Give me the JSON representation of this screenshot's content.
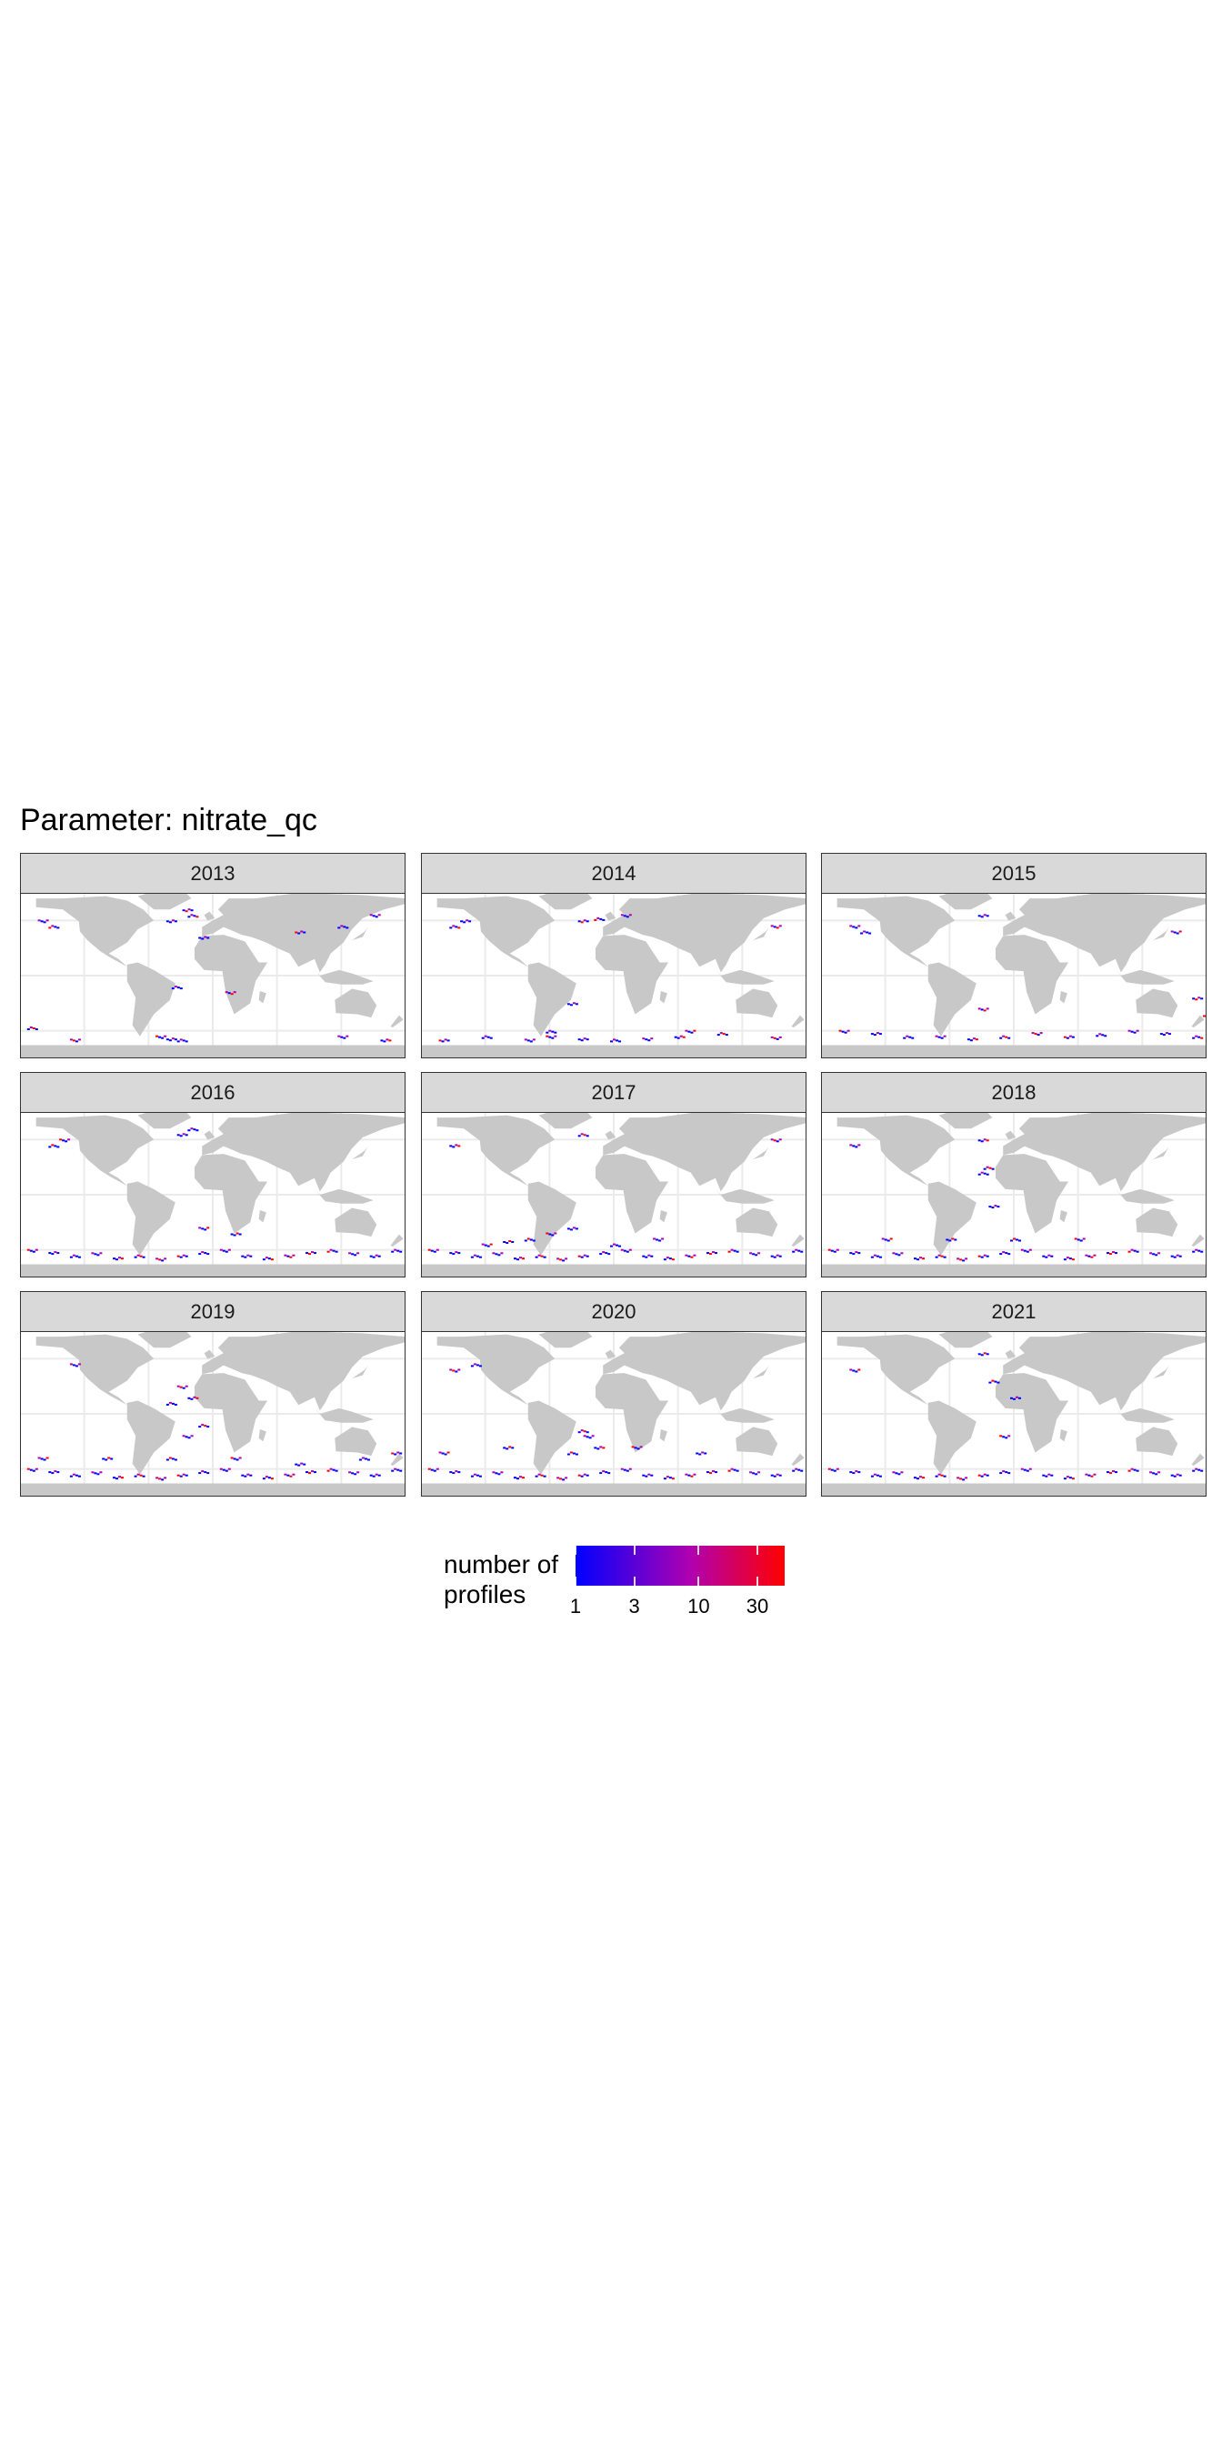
{
  "title": "Parameter: nitrate_qc",
  "chart_data": {
    "type": "map-facets",
    "parameter": "nitrate_qc",
    "panels": [
      {
        "year": "2013",
        "points": [
          [
            -50,
            -55
          ],
          [
            -40,
            -57
          ],
          [
            -30,
            -58
          ],
          [
            120,
            -55
          ],
          [
            160,
            -58
          ],
          [
            -170,
            -47
          ],
          [
            -130,
            -58
          ],
          [
            80,
            40
          ],
          [
            120,
            45
          ],
          [
            150,
            55
          ],
          [
            -40,
            50
          ],
          [
            -20,
            55
          ],
          [
            15,
            -15
          ],
          [
            -25,
            60
          ],
          [
            -150,
            45
          ],
          [
            -160,
            50
          ],
          [
            -10,
            35
          ],
          [
            -35,
            -10
          ]
        ]
      },
      {
        "year": "2014",
        "points": [
          [
            -60,
            -55
          ],
          [
            -30,
            -57
          ],
          [
            0,
            -58
          ],
          [
            30,
            -57
          ],
          [
            60,
            -55
          ],
          [
            100,
            -52
          ],
          [
            150,
            -56
          ],
          [
            -160,
            -58
          ],
          [
            -120,
            -55
          ],
          [
            -80,
            -58
          ],
          [
            -140,
            50
          ],
          [
            -150,
            45
          ],
          [
            150,
            45
          ],
          [
            -30,
            50
          ],
          [
            -15,
            52
          ],
          [
            10,
            55
          ],
          [
            -40,
            -25
          ],
          [
            -60,
            -50
          ],
          [
            70,
            -50
          ]
        ]
      },
      {
        "year": "2015",
        "points": [
          [
            -160,
            -50
          ],
          [
            -130,
            -52
          ],
          [
            -100,
            -55
          ],
          [
            -70,
            -55
          ],
          [
            -40,
            -57
          ],
          [
            -10,
            -55
          ],
          [
            20,
            -52
          ],
          [
            50,
            -55
          ],
          [
            80,
            -53
          ],
          [
            110,
            -50
          ],
          [
            140,
            -52
          ],
          [
            170,
            -55
          ],
          [
            -30,
            -30
          ],
          [
            170,
            -20
          ],
          [
            180,
            -35
          ],
          [
            -150,
            45
          ],
          [
            -30,
            55
          ],
          [
            -140,
            40
          ],
          [
            150,
            40
          ]
        ]
      },
      {
        "year": "2016",
        "points": [
          [
            -170,
            -50
          ],
          [
            -150,
            -52
          ],
          [
            -130,
            -55
          ],
          [
            -110,
            -53
          ],
          [
            -90,
            -57
          ],
          [
            -70,
            -55
          ],
          [
            -50,
            -58
          ],
          [
            -30,
            -55
          ],
          [
            -10,
            -52
          ],
          [
            10,
            -50
          ],
          [
            30,
            -55
          ],
          [
            50,
            -57
          ],
          [
            70,
            -55
          ],
          [
            90,
            -52
          ],
          [
            110,
            -50
          ],
          [
            130,
            -53
          ],
          [
            150,
            -55
          ],
          [
            170,
            -50
          ],
          [
            -10,
            -30
          ],
          [
            20,
            -35
          ],
          [
            -150,
            45
          ],
          [
            -140,
            50
          ],
          [
            -30,
            55
          ],
          [
            -20,
            60
          ]
        ]
      },
      {
        "year": "2017",
        "points": [
          [
            -170,
            -50
          ],
          [
            -150,
            -52
          ],
          [
            -130,
            -55
          ],
          [
            -110,
            -53
          ],
          [
            -90,
            -57
          ],
          [
            -70,
            -55
          ],
          [
            -50,
            -58
          ],
          [
            -30,
            -55
          ],
          [
            -10,
            -52
          ],
          [
            10,
            -50
          ],
          [
            30,
            -55
          ],
          [
            50,
            -57
          ],
          [
            70,
            -55
          ],
          [
            90,
            -52
          ],
          [
            110,
            -50
          ],
          [
            130,
            -53
          ],
          [
            150,
            -55
          ],
          [
            170,
            -50
          ],
          [
            -120,
            -45
          ],
          [
            -100,
            -42
          ],
          [
            -80,
            -40
          ],
          [
            -60,
            -35
          ],
          [
            -40,
            -30
          ],
          [
            0,
            -45
          ],
          [
            40,
            -40
          ],
          [
            -150,
            45
          ],
          [
            -30,
            55
          ],
          [
            150,
            50
          ]
        ]
      },
      {
        "year": "2018",
        "points": [
          [
            -170,
            -50
          ],
          [
            -150,
            -52
          ],
          [
            -130,
            -55
          ],
          [
            -110,
            -53
          ],
          [
            -90,
            -57
          ],
          [
            -70,
            -55
          ],
          [
            -50,
            -58
          ],
          [
            -30,
            -55
          ],
          [
            -10,
            -52
          ],
          [
            10,
            -50
          ],
          [
            30,
            -55
          ],
          [
            50,
            -57
          ],
          [
            70,
            -55
          ],
          [
            90,
            -52
          ],
          [
            110,
            -50
          ],
          [
            130,
            -53
          ],
          [
            150,
            -55
          ],
          [
            170,
            -50
          ],
          [
            -120,
            -40
          ],
          [
            -60,
            -40
          ],
          [
            0,
            -40
          ],
          [
            60,
            -40
          ],
          [
            -20,
            -10
          ],
          [
            -30,
            20
          ],
          [
            -150,
            45
          ],
          [
            -30,
            50
          ],
          [
            -25,
            25
          ]
        ]
      },
      {
        "year": "2019",
        "points": [
          [
            -170,
            -50
          ],
          [
            -150,
            -52
          ],
          [
            -130,
            -55
          ],
          [
            -110,
            -53
          ],
          [
            -90,
            -57
          ],
          [
            -70,
            -55
          ],
          [
            -50,
            -58
          ],
          [
            -30,
            -55
          ],
          [
            -10,
            -52
          ],
          [
            10,
            -50
          ],
          [
            30,
            -55
          ],
          [
            50,
            -57
          ],
          [
            70,
            -55
          ],
          [
            90,
            -52
          ],
          [
            110,
            -50
          ],
          [
            130,
            -53
          ],
          [
            150,
            -55
          ],
          [
            170,
            -50
          ],
          [
            -160,
            -40
          ],
          [
            -100,
            -40
          ],
          [
            -40,
            -40
          ],
          [
            20,
            -40
          ],
          [
            80,
            -45
          ],
          [
            140,
            -40
          ],
          [
            -130,
            45
          ],
          [
            -20,
            15
          ],
          [
            -10,
            -10
          ],
          [
            -30,
            25
          ],
          [
            170,
            -35
          ],
          [
            -40,
            10
          ],
          [
            -25,
            -20
          ]
        ]
      },
      {
        "year": "2020",
        "points": [
          [
            -170,
            -50
          ],
          [
            -150,
            -52
          ],
          [
            -130,
            -55
          ],
          [
            -110,
            -53
          ],
          [
            -90,
            -57
          ],
          [
            -70,
            -55
          ],
          [
            -50,
            -58
          ],
          [
            -30,
            -55
          ],
          [
            -10,
            -52
          ],
          [
            10,
            -50
          ],
          [
            30,
            -55
          ],
          [
            50,
            -57
          ],
          [
            70,
            -55
          ],
          [
            90,
            -52
          ],
          [
            110,
            -50
          ],
          [
            130,
            -53
          ],
          [
            150,
            -55
          ],
          [
            170,
            -50
          ],
          [
            -160,
            -35
          ],
          [
            -100,
            -30
          ],
          [
            -40,
            -35
          ],
          [
            20,
            -30
          ],
          [
            80,
            -35
          ],
          [
            -130,
            45
          ],
          [
            -25,
            -20
          ],
          [
            -15,
            -30
          ],
          [
            -30,
            -15
          ],
          [
            -150,
            40
          ]
        ]
      },
      {
        "year": "2021",
        "points": [
          [
            -170,
            -50
          ],
          [
            -150,
            -52
          ],
          [
            -130,
            -55
          ],
          [
            -110,
            -53
          ],
          [
            -90,
            -57
          ],
          [
            -70,
            -55
          ],
          [
            -50,
            -58
          ],
          [
            -30,
            -55
          ],
          [
            -10,
            -52
          ],
          [
            10,
            -50
          ],
          [
            30,
            -55
          ],
          [
            50,
            -57
          ],
          [
            70,
            -55
          ],
          [
            90,
            -52
          ],
          [
            110,
            -50
          ],
          [
            130,
            -53
          ],
          [
            150,
            -55
          ],
          [
            170,
            -50
          ],
          [
            -150,
            40
          ],
          [
            -30,
            55
          ],
          [
            -20,
            30
          ],
          [
            -10,
            -20
          ],
          [
            0,
            15
          ]
        ]
      }
    ],
    "legend": {
      "title_lines": [
        "number of",
        "profiles"
      ],
      "scale": "log",
      "range": [
        1,
        50
      ],
      "ticks": [
        1,
        3,
        10,
        30
      ],
      "tick_labels": [
        "1",
        "3",
        "10",
        "30"
      ],
      "colors": {
        "low": "#0000ff",
        "mid": "#b000b0",
        "high": "#ff0000"
      }
    },
    "colors": {
      "land": "#c8c8c8",
      "ocean": "#ffffff",
      "grid": "#ebebeb",
      "strip": "#d9d9d9",
      "border": "#333333"
    }
  }
}
